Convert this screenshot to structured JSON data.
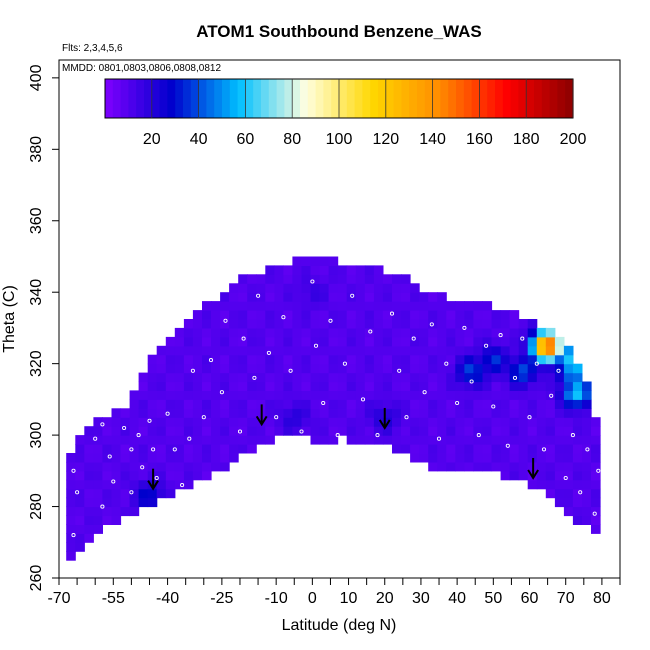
{
  "chart_data": {
    "type": "heatmap",
    "title": "ATOM1 Southbound Benzene_WAS",
    "subtitle_flights": "Flts: 2,3,4,5,6",
    "subtitle_dates": "MMDD: 0801,0803,0806,0808,0812",
    "xlabel": "Latitude (deg N)",
    "ylabel": "Theta (C)",
    "xlim": [
      -70,
      85
    ],
    "ylim": [
      260,
      405
    ],
    "x_ticks": [
      -70,
      -55,
      -40,
      -25,
      -10,
      0,
      10,
      20,
      30,
      40,
      50,
      60,
      70,
      80
    ],
    "x_minor_ticks": [
      -65,
      -60,
      -50,
      -45,
      -35,
      -30,
      -20,
      -15,
      -5,
      5,
      15,
      25,
      35,
      45,
      55,
      65,
      75,
      85
    ],
    "y_ticks": [
      260,
      280,
      300,
      320,
      340,
      360,
      380,
      400
    ],
    "colorbar": {
      "min": 0,
      "max": 200,
      "ticks": [
        20,
        40,
        60,
        80,
        100,
        120,
        140,
        160,
        180,
        200
      ],
      "colors": [
        "#7f00ff",
        "#0000cd",
        "#00bfff",
        "#ffffe0",
        "#ffd700",
        "#ff8c00",
        "#ff0000",
        "#8b0000"
      ]
    },
    "background_value": 10,
    "upper_boundary": [
      [
        -68,
        293
      ],
      [
        -63,
        302
      ],
      [
        -58,
        305
      ],
      [
        -52,
        308
      ],
      [
        -48,
        316
      ],
      [
        -44,
        322
      ],
      [
        -40,
        326
      ],
      [
        -35,
        333
      ],
      [
        -30,
        336
      ],
      [
        -25,
        338
      ],
      [
        -20,
        345
      ],
      [
        -15,
        346
      ],
      [
        -10,
        347
      ],
      [
        -5,
        349
      ],
      [
        0,
        350
      ],
      [
        5,
        349
      ],
      [
        10,
        348
      ],
      [
        15,
        347
      ],
      [
        20,
        346
      ],
      [
        25,
        345
      ],
      [
        30,
        341
      ],
      [
        35,
        339
      ],
      [
        40,
        338
      ],
      [
        45,
        337
      ],
      [
        50,
        336
      ],
      [
        55,
        334
      ],
      [
        60,
        333
      ],
      [
        65,
        330
      ],
      [
        70,
        326
      ],
      [
        75,
        318
      ],
      [
        78,
        307
      ],
      [
        80,
        294
      ],
      [
        80,
        272
      ]
    ],
    "lower_boundary": [
      [
        -68,
        265
      ],
      [
        -60,
        272
      ],
      [
        -52,
        277
      ],
      [
        -45,
        280
      ],
      [
        -40,
        282
      ],
      [
        -35,
        285
      ],
      [
        -30,
        288
      ],
      [
        -22,
        292
      ],
      [
        -14,
        298
      ],
      [
        -8,
        300
      ],
      [
        -3,
        300
      ],
      [
        2,
        298
      ],
      [
        8,
        299
      ],
      [
        12,
        298
      ],
      [
        18,
        298
      ],
      [
        25,
        295
      ],
      [
        32,
        291
      ],
      [
        40,
        291
      ],
      [
        50,
        290
      ],
      [
        57,
        287
      ],
      [
        63,
        284
      ],
      [
        68,
        280
      ],
      [
        73,
        276
      ],
      [
        77,
        273
      ],
      [
        80,
        272
      ]
    ],
    "anomalies": [
      {
        "lat": 50,
        "theta": 321,
        "value": 35
      },
      {
        "lat": 44,
        "theta": 318,
        "value": 38
      },
      {
        "lat": 58,
        "theta": 318,
        "value": 40
      },
      {
        "lat": 63,
        "theta": 325,
        "value": 32
      },
      {
        "lat": 72,
        "theta": 318,
        "value": 55
      },
      {
        "lat": 73,
        "theta": 320,
        "value": 62
      },
      {
        "lat": 73,
        "theta": 312,
        "value": 60
      },
      {
        "lat": 73,
        "theta": 322,
        "value": 78
      },
      {
        "lat": 65,
        "theta": 325,
        "value": 160
      },
      {
        "lat": 20,
        "theta": 305,
        "value": 22
      },
      {
        "lat": -45,
        "theta": 283,
        "value": 30
      },
      {
        "lat": 0,
        "theta": 340,
        "value": 16
      },
      {
        "lat": -5,
        "theta": 305,
        "value": 20
      }
    ],
    "arrows": [
      {
        "lat": -44,
        "theta": 285
      },
      {
        "lat": -14,
        "theta": 303
      },
      {
        "lat": 20,
        "theta": 302
      },
      {
        "lat": 61,
        "theta": 288
      }
    ],
    "samples": [
      {
        "lat": -66,
        "theta": 290
      },
      {
        "lat": -65,
        "theta": 284
      },
      {
        "lat": -66,
        "theta": 272
      },
      {
        "lat": -60,
        "theta": 299
      },
      {
        "lat": -58,
        "theta": 303
      },
      {
        "lat": -58,
        "theta": 280
      },
      {
        "lat": -56,
        "theta": 294
      },
      {
        "lat": -55,
        "theta": 287
      },
      {
        "lat": -52,
        "theta": 302
      },
      {
        "lat": -50,
        "theta": 296
      },
      {
        "lat": -50,
        "theta": 284
      },
      {
        "lat": -48,
        "theta": 300
      },
      {
        "lat": -47,
        "theta": 291
      },
      {
        "lat": -45,
        "theta": 304
      },
      {
        "lat": -44,
        "theta": 296
      },
      {
        "lat": -43,
        "theta": 288
      },
      {
        "lat": -40,
        "theta": 306
      },
      {
        "lat": -38,
        "theta": 296
      },
      {
        "lat": -36,
        "theta": 286
      },
      {
        "lat": -34,
        "theta": 299
      },
      {
        "lat": -33,
        "theta": 318
      },
      {
        "lat": -30,
        "theta": 305
      },
      {
        "lat": -28,
        "theta": 321
      },
      {
        "lat": -25,
        "theta": 312
      },
      {
        "lat": -24,
        "theta": 332
      },
      {
        "lat": -20,
        "theta": 301
      },
      {
        "lat": -19,
        "theta": 327
      },
      {
        "lat": -16,
        "theta": 316
      },
      {
        "lat": -15,
        "theta": 339
      },
      {
        "lat": -12,
        "theta": 323
      },
      {
        "lat": -10,
        "theta": 305
      },
      {
        "lat": -8,
        "theta": 333
      },
      {
        "lat": -6,
        "theta": 318
      },
      {
        "lat": -3,
        "theta": 301
      },
      {
        "lat": 0,
        "theta": 343
      },
      {
        "lat": 1,
        "theta": 325
      },
      {
        "lat": 3,
        "theta": 309
      },
      {
        "lat": 5,
        "theta": 332
      },
      {
        "lat": 7,
        "theta": 300
      },
      {
        "lat": 9,
        "theta": 320
      },
      {
        "lat": 11,
        "theta": 339
      },
      {
        "lat": 14,
        "theta": 310
      },
      {
        "lat": 16,
        "theta": 329
      },
      {
        "lat": 18,
        "theta": 300
      },
      {
        "lat": 22,
        "theta": 334
      },
      {
        "lat": 24,
        "theta": 318
      },
      {
        "lat": 26,
        "theta": 305
      },
      {
        "lat": 28,
        "theta": 327
      },
      {
        "lat": 31,
        "theta": 312
      },
      {
        "lat": 33,
        "theta": 331
      },
      {
        "lat": 35,
        "theta": 299
      },
      {
        "lat": 37,
        "theta": 320
      },
      {
        "lat": 40,
        "theta": 309
      },
      {
        "lat": 42,
        "theta": 330
      },
      {
        "lat": 44,
        "theta": 315
      },
      {
        "lat": 46,
        "theta": 300
      },
      {
        "lat": 48,
        "theta": 325
      },
      {
        "lat": 50,
        "theta": 308
      },
      {
        "lat": 52,
        "theta": 328
      },
      {
        "lat": 54,
        "theta": 297
      },
      {
        "lat": 56,
        "theta": 316
      },
      {
        "lat": 58,
        "theta": 327
      },
      {
        "lat": 60,
        "theta": 305
      },
      {
        "lat": 62,
        "theta": 320
      },
      {
        "lat": 64,
        "theta": 296
      },
      {
        "lat": 66,
        "theta": 311
      },
      {
        "lat": 68,
        "theta": 318
      },
      {
        "lat": 70,
        "theta": 288
      },
      {
        "lat": 72,
        "theta": 300
      },
      {
        "lat": 74,
        "theta": 284
      },
      {
        "lat": 76,
        "theta": 296
      },
      {
        "lat": 78,
        "theta": 278
      },
      {
        "lat": 79,
        "theta": 290
      }
    ]
  }
}
